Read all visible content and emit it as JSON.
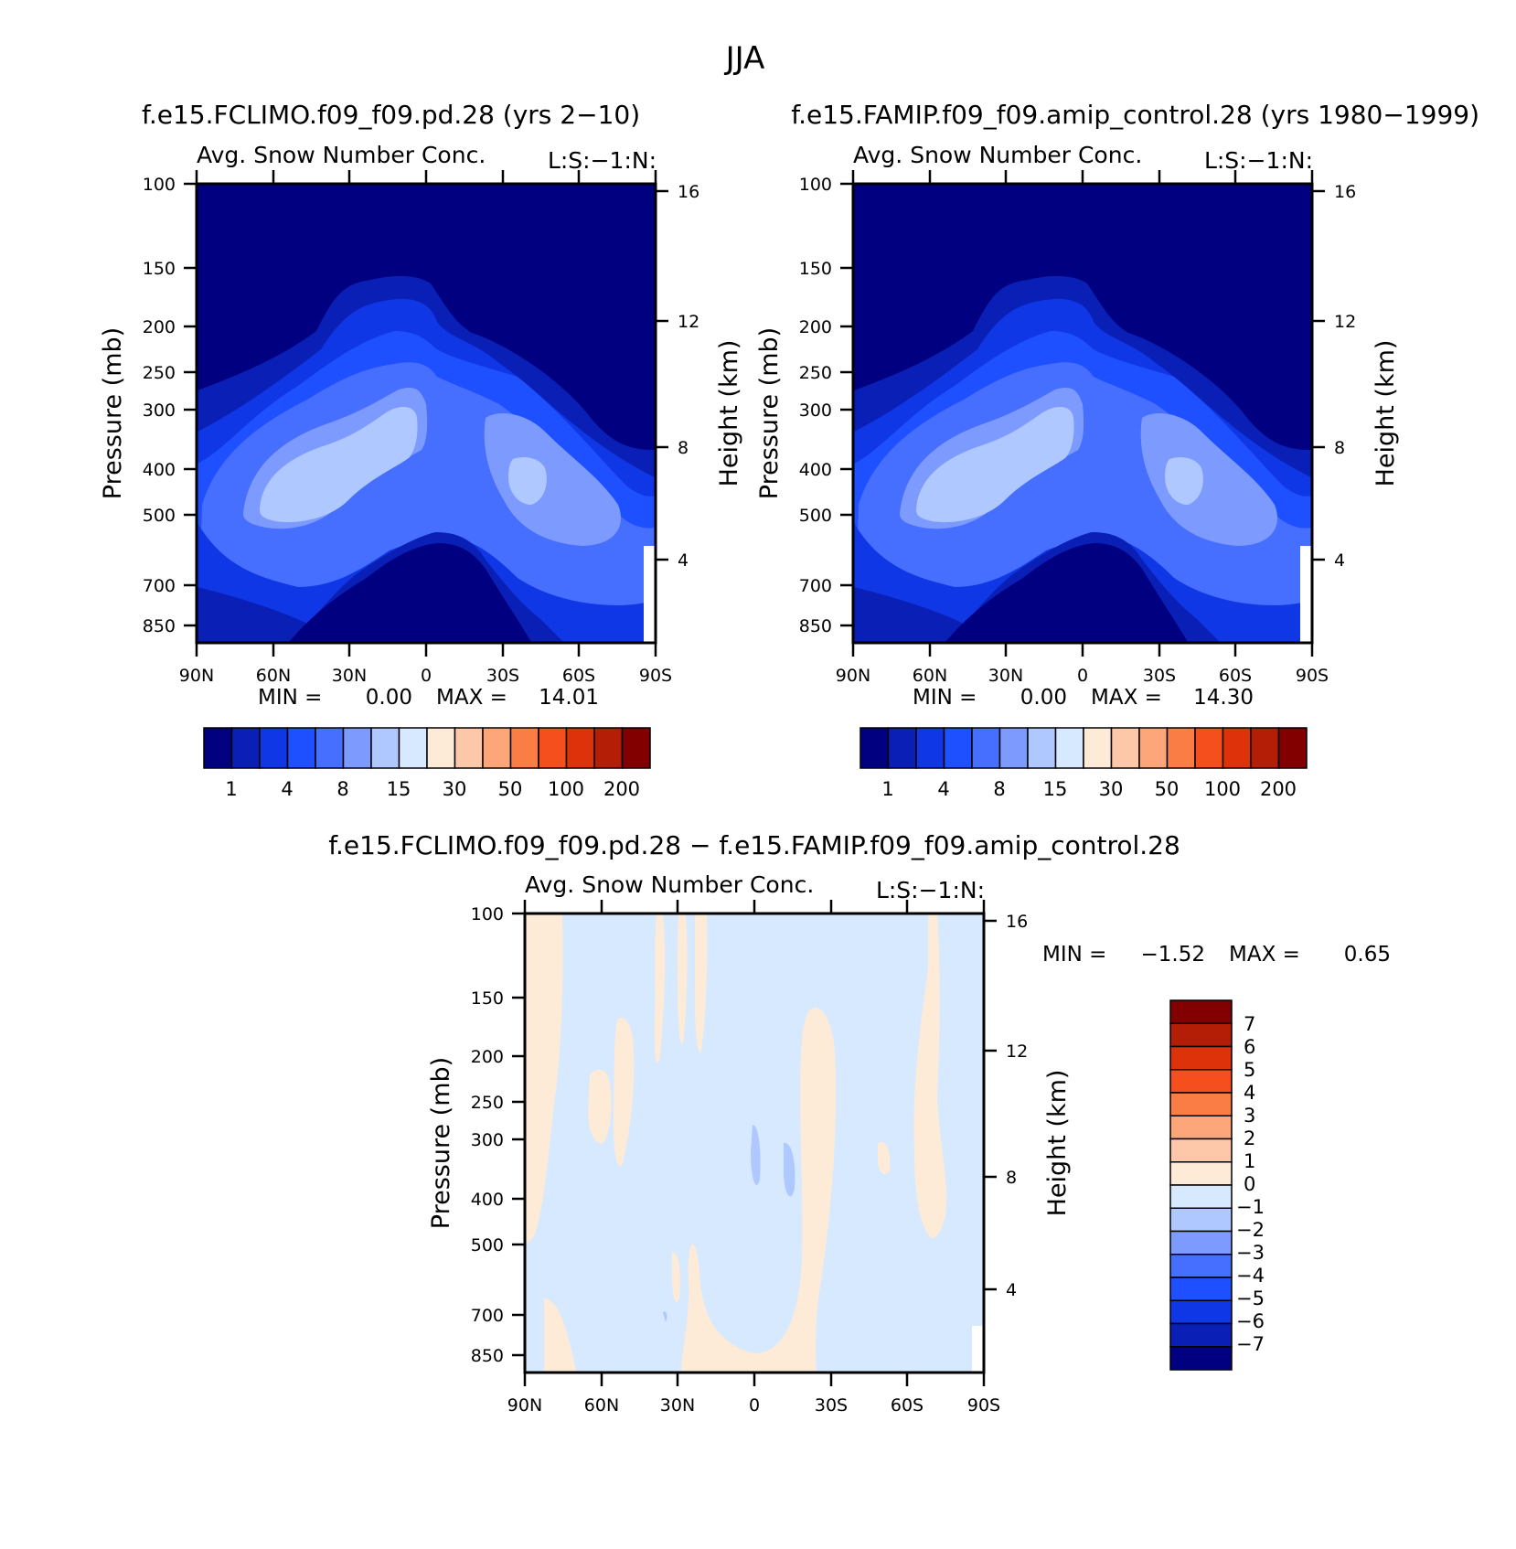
{
  "main_title": "JJA",
  "chart_data": [
    {
      "type": "contour",
      "title": "f.e15.FCLIMO.f09_f09.pd.28 (yrs 2-10)",
      "subtitle_left": "Avg. Snow Number Conc.",
      "subtitle_right": "L:S:-1:N:",
      "ylabel": "Pressure (mb)",
      "ylabel_right": "Height (km)",
      "xticks": [
        "90N",
        "60N",
        "30N",
        "0",
        "30S",
        "60S",
        "90S"
      ],
      "yticks": [
        "100",
        "150",
        "200",
        "250",
        "300",
        "400",
        "500",
        "700",
        "850"
      ],
      "yticks_right": [
        "16",
        "12",
        "8",
        "4"
      ],
      "min_label": "MIN =",
      "min_value": "0.00",
      "max_label": "MAX =",
      "max_value": "14.01",
      "colorbar_labels": [
        "1",
        "4",
        "8",
        "15",
        "30",
        "50",
        "100",
        "200"
      ]
    },
    {
      "type": "contour",
      "title": "f.e15.FAMIP.f09_f09.amip_control.28 (yrs 1980-1999)",
      "subtitle_left": "Avg. Snow Number Conc.",
      "subtitle_right": "L:S:-1:N:",
      "ylabel": "Pressure (mb)",
      "ylabel_right": "Height (km)",
      "xticks": [
        "90N",
        "60N",
        "30N",
        "0",
        "30S",
        "60S",
        "90S"
      ],
      "yticks": [
        "100",
        "150",
        "200",
        "250",
        "300",
        "400",
        "500",
        "700",
        "850"
      ],
      "yticks_right": [
        "16",
        "12",
        "8",
        "4"
      ],
      "min_label": "MIN =",
      "min_value": "0.00",
      "max_label": "MAX =",
      "max_value": "14.30",
      "colorbar_labels": [
        "1",
        "4",
        "8",
        "15",
        "30",
        "50",
        "100",
        "200"
      ]
    },
    {
      "type": "contour",
      "title": "f.e15.FCLIMO.f09_f09.pd.28 - f.e15.FAMIP.f09_f09.amip_control.28",
      "subtitle_left": "Avg. Snow Number Conc.",
      "subtitle_right": "L:S:-1:N:",
      "ylabel": "Pressure (mb)",
      "ylabel_right": "Height (km)",
      "xticks": [
        "90N",
        "60N",
        "30N",
        "0",
        "30S",
        "60S",
        "90S"
      ],
      "yticks": [
        "100",
        "150",
        "200",
        "250",
        "300",
        "400",
        "500",
        "700",
        "850"
      ],
      "yticks_right": [
        "16",
        "12",
        "8",
        "4"
      ],
      "min_label": "MIN =",
      "min_value": "-1.52",
      "max_label": "MAX =",
      "max_value": "0.65",
      "colorbar_labels": [
        "7",
        "6",
        "5",
        "4",
        "3",
        "2",
        "1",
        "0",
        "-1",
        "-2",
        "-3",
        "-4",
        "-5",
        "-6",
        "-7"
      ]
    }
  ],
  "palette": [
    "#000080",
    "#0a1fb5",
    "#0f37e6",
    "#1e50ff",
    "#466eff",
    "#7d9bff",
    "#afc8ff",
    "#d7e9ff",
    "#fdebd8",
    "#fdc8aa",
    "#fca67a",
    "#fa7d46",
    "#f54f1e",
    "#dd320a",
    "#b41e06",
    "#820000"
  ]
}
